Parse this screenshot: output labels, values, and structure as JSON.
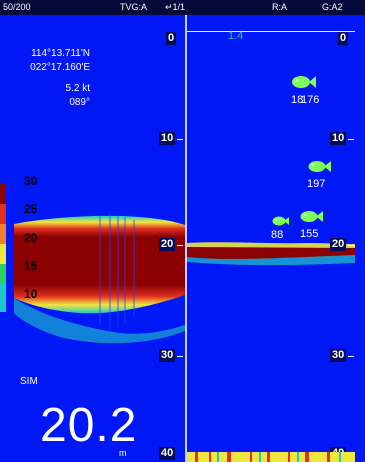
{
  "top_bar": {
    "gain_range": "50/200",
    "tvg": "TVG:A",
    "page": "↵1/1",
    "range_mode": "R:A",
    "gain_mode": "G:A2"
  },
  "position": {
    "lat": "114°13.711'N",
    "lon": "022°17.160'E",
    "speed": "5.2 kt",
    "heading": "089°"
  },
  "scale_value": "1.4",
  "depth_scale": [
    "0",
    "10",
    "20",
    "30",
    "40"
  ],
  "color_bar_labels": [
    "30",
    "25",
    "20",
    "15",
    "10"
  ],
  "mode": "SIM",
  "current_depth": "20.2",
  "depth_unit": "m",
  "fish": [
    {
      "label": "18"
    },
    {
      "label": "176"
    },
    {
      "label": "197"
    },
    {
      "label": "88"
    },
    {
      "label": "155"
    }
  ],
  "colors": {
    "background": "#0018f5",
    "fish": "#7dff5a",
    "echo_strong": "#8b0000",
    "scale_line_value": "#19d08a"
  }
}
